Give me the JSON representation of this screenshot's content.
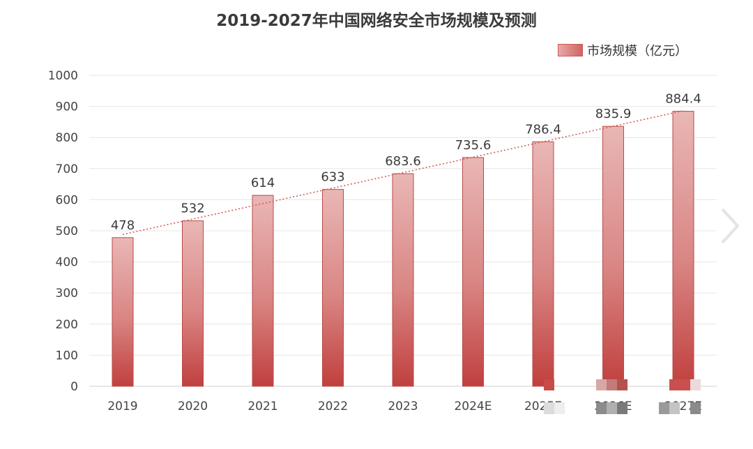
{
  "chart_data": {
    "type": "bar",
    "title": "2019-2027年中国网络安全市场规模及预测",
    "categories": [
      "2019",
      "2020",
      "2021",
      "2022",
      "2023",
      "2024E",
      "2025E",
      "2026E",
      "2027E"
    ],
    "series": [
      {
        "name": "市场规模（亿元）",
        "values": [
          478,
          532,
          614,
          633,
          683.6,
          735.6,
          786.4,
          835.9,
          884.4
        ]
      }
    ],
    "data_labels": [
      "478",
      "532",
      "614",
      "633",
      "683.6",
      "735.6",
      "786.4",
      "835.9",
      "884.4"
    ],
    "ylim": [
      0,
      1000
    ],
    "yticks": [
      "0",
      "100",
      "200",
      "300",
      "400",
      "500",
      "600",
      "700",
      "800",
      "900",
      "1000"
    ],
    "xlabel": "",
    "ylabel": "",
    "grid": true,
    "trendline": "dotted linear",
    "legend_position": "top-right",
    "colors": {
      "bar_top": "#e8b3b1",
      "bar_bottom": "#c0403e",
      "bar_edge": "#b84a47",
      "trend": "#d65a56",
      "grid": "#e6e6e6"
    }
  },
  "nav": {
    "next_icon": "chevron-right-icon"
  }
}
